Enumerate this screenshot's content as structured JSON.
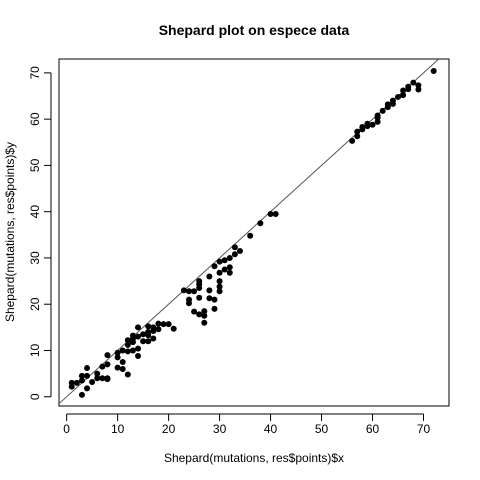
{
  "chart_data": {
    "type": "scatter",
    "title": "Shepard plot on espece data",
    "xlabel": "Shepard(mutations, res$points)$x",
    "ylabel": "Shepard(mutations, res$points)$y",
    "xlim": [
      -1.5,
      75
    ],
    "ylim": [
      -2,
      73
    ],
    "xticks": [
      0,
      10,
      20,
      30,
      40,
      50,
      60,
      70
    ],
    "yticks": [
      0,
      10,
      20,
      30,
      40,
      50,
      60,
      70
    ],
    "reference_line": {
      "intercept": 0,
      "slope": 1
    },
    "grid": false,
    "points": [
      [
        1,
        2.2
      ],
      [
        1,
        3
      ],
      [
        2,
        3
      ],
      [
        3,
        3.5
      ],
      [
        3,
        4.5
      ],
      [
        3,
        0.4
      ],
      [
        4,
        4.5
      ],
      [
        4,
        6.2
      ],
      [
        4,
        1.8
      ],
      [
        5,
        3.2
      ],
      [
        6,
        5
      ],
      [
        6,
        4
      ],
      [
        7,
        4
      ],
      [
        7,
        6.5
      ],
      [
        8,
        7
      ],
      [
        8,
        9
      ],
      [
        8,
        4
      ],
      [
        8,
        3.8
      ],
      [
        10,
        6.3
      ],
      [
        10,
        8.5
      ],
      [
        10,
        9.5
      ],
      [
        11,
        7.5
      ],
      [
        11,
        6
      ],
      [
        11,
        10
      ],
      [
        12,
        4.8
      ],
      [
        12,
        9.8
      ],
      [
        12,
        11.2
      ],
      [
        12,
        12.2
      ],
      [
        13,
        10
      ],
      [
        13,
        12.5
      ],
      [
        13,
        13.2
      ],
      [
        13,
        11.8
      ],
      [
        14,
        10.4
      ],
      [
        14,
        13
      ],
      [
        14,
        15
      ],
      [
        14,
        8.8
      ],
      [
        15,
        12
      ],
      [
        15,
        13.5
      ],
      [
        16,
        12
      ],
      [
        16,
        14
      ],
      [
        16,
        15.2
      ],
      [
        16,
        13.3
      ],
      [
        17,
        12.6
      ],
      [
        17,
        15
      ],
      [
        17,
        14.2
      ],
      [
        18,
        15.8
      ],
      [
        18,
        14.6
      ],
      [
        19,
        15.7
      ],
      [
        20,
        15.7
      ],
      [
        21,
        14.7
      ],
      [
        23,
        23
      ],
      [
        24,
        20.2
      ],
      [
        24,
        21
      ],
      [
        24,
        22.8
      ],
      [
        25,
        22.8
      ],
      [
        25,
        18.4
      ],
      [
        26,
        23.5
      ],
      [
        26,
        24.3
      ],
      [
        26,
        21.4
      ],
      [
        26,
        17.8
      ],
      [
        26,
        25
      ],
      [
        27,
        16
      ],
      [
        27,
        17.5
      ],
      [
        27,
        18.5
      ],
      [
        28,
        21.3
      ],
      [
        28,
        23
      ],
      [
        28,
        26
      ],
      [
        29,
        19
      ],
      [
        29,
        21
      ],
      [
        29,
        28.2
      ],
      [
        30,
        22.8
      ],
      [
        30,
        23.8
      ],
      [
        30,
        25
      ],
      [
        30,
        26.8
      ],
      [
        30,
        29.2
      ],
      [
        31,
        29.5
      ],
      [
        31,
        27.5
      ],
      [
        32,
        26.8
      ],
      [
        32,
        28
      ],
      [
        32,
        30
      ],
      [
        33,
        30.8
      ],
      [
        33,
        32.3
      ],
      [
        34,
        31.5
      ],
      [
        36,
        34.8
      ],
      [
        38,
        37.5
      ],
      [
        40,
        39.5
      ],
      [
        41,
        39.5
      ],
      [
        56,
        55.3
      ],
      [
        57,
        56.3
      ],
      [
        57,
        57.3
      ],
      [
        58,
        57.8
      ],
      [
        58,
        58.3
      ],
      [
        59,
        58.5
      ],
      [
        59,
        59
      ],
      [
        60,
        58.8
      ],
      [
        61,
        59.4
      ],
      [
        61,
        60.3
      ],
      [
        61,
        60.8
      ],
      [
        62,
        61.8
      ],
      [
        63,
        62.6
      ],
      [
        63,
        63.2
      ],
      [
        64,
        63.3
      ],
      [
        64,
        64
      ],
      [
        65,
        64.8
      ],
      [
        66,
        65.2
      ],
      [
        66,
        66.2
      ],
      [
        67,
        66.5
      ],
      [
        67,
        67
      ],
      [
        68,
        67.9
      ],
      [
        69,
        66.4
      ],
      [
        69,
        67.3
      ],
      [
        72,
        70.4
      ]
    ]
  }
}
